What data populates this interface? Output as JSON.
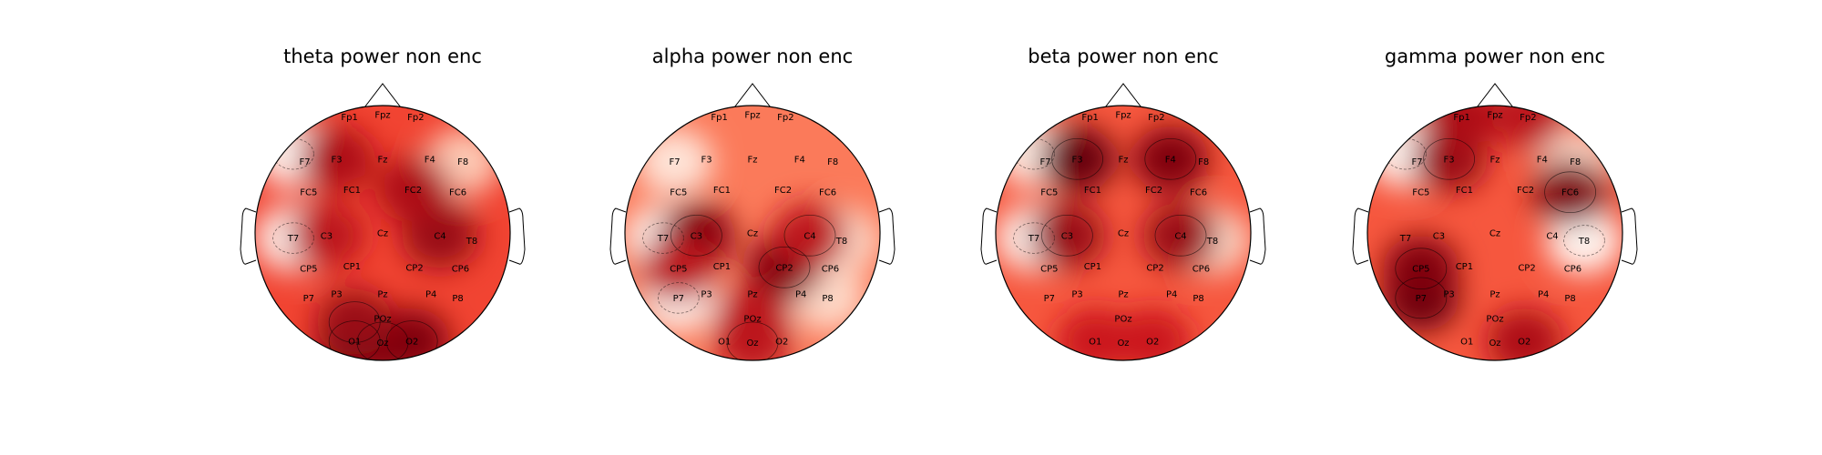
{
  "figure": {
    "background": "#ffffff",
    "colormap": "Reds",
    "head_outline_color": "#000000"
  },
  "chart_data": [
    {
      "type": "heatmap",
      "subtype": "eeg-topomap",
      "title": "theta power non enc",
      "hotspots": [
        {
          "electrode": "O1",
          "intensity": 1.0
        },
        {
          "electrode": "Oz",
          "intensity": 1.0
        },
        {
          "electrode": "O2",
          "intensity": 0.95
        },
        {
          "electrode": "PO3",
          "intensity": 0.9
        },
        {
          "electrode": "C4",
          "intensity": 0.9
        },
        {
          "electrode": "FC2",
          "intensity": 0.85
        },
        {
          "electrode": "F3",
          "intensity": 0.85
        },
        {
          "electrode": "C3",
          "intensity": 0.8
        }
      ],
      "coldspots": [
        {
          "electrode": "T7",
          "intensity": 0.0
        },
        {
          "electrode": "AF7",
          "intensity": 0.0
        },
        {
          "electrode": "F8",
          "intensity": 0.2
        }
      ],
      "background_intensity": 0.6
    },
    {
      "type": "heatmap",
      "subtype": "eeg-topomap",
      "title": "alpha power non enc",
      "hotspots": [
        {
          "electrode": "C3",
          "intensity": 0.95
        },
        {
          "electrode": "CP2",
          "intensity": 0.95
        },
        {
          "electrode": "C4",
          "intensity": 0.8
        },
        {
          "electrode": "Oz",
          "intensity": 0.8
        },
        {
          "electrode": "POz",
          "intensity": 0.8
        },
        {
          "electrode": "CP5",
          "intensity": 0.8
        }
      ],
      "coldspots": [
        {
          "electrode": "T7",
          "intensity": 0.0
        },
        {
          "electrode": "P7",
          "intensity": 0.0
        },
        {
          "electrode": "F7",
          "intensity": 0.1
        },
        {
          "electrode": "T8",
          "intensity": 0.15
        },
        {
          "electrode": "P8",
          "intensity": 0.15
        }
      ],
      "background_intensity": 0.45
    },
    {
      "type": "heatmap",
      "subtype": "eeg-topomap",
      "title": "beta power non enc",
      "hotspots": [
        {
          "electrode": "F3",
          "intensity": 1.0
        },
        {
          "electrode": "F4",
          "intensity": 0.95
        },
        {
          "electrode": "C3",
          "intensity": 0.9
        },
        {
          "electrode": "C4",
          "intensity": 0.9
        },
        {
          "electrode": "O1",
          "intensity": 0.75
        },
        {
          "electrode": "O2",
          "intensity": 0.75
        }
      ],
      "coldspots": [
        {
          "electrode": "T7",
          "intensity": 0.0
        },
        {
          "electrode": "AF7",
          "intensity": 0.05
        },
        {
          "electrode": "T8",
          "intensity": 0.15
        }
      ],
      "background_intensity": 0.55
    },
    {
      "type": "heatmap",
      "subtype": "eeg-topomap",
      "title": "gamma power non enc",
      "hotspots": [
        {
          "electrode": "P7",
          "intensity": 1.0
        },
        {
          "electrode": "CP5",
          "intensity": 0.95
        },
        {
          "electrode": "FC6",
          "intensity": 0.95
        },
        {
          "electrode": "F3",
          "intensity": 0.9
        },
        {
          "electrode": "Fp1",
          "intensity": 0.85
        },
        {
          "electrode": "O2",
          "intensity": 0.85
        },
        {
          "electrode": "Fp2",
          "intensity": 0.8
        }
      ],
      "coldspots": [
        {
          "electrode": "T8",
          "intensity": 0.0
        },
        {
          "electrode": "AF7",
          "intensity": 0.0
        },
        {
          "electrode": "F8",
          "intensity": 0.15
        }
      ],
      "background_intensity": 0.55
    }
  ],
  "electrode_labels": [
    "Fp1",
    "Fpz",
    "Fp2",
    "F7",
    "F3",
    "Fz",
    "F4",
    "F8",
    "FC5",
    "FC1",
    "FC2",
    "FC6",
    "T7",
    "C3",
    "Cz",
    "C4",
    "T8",
    "CP5",
    "CP1",
    "CP2",
    "CP6",
    "P7",
    "P3",
    "Pz",
    "P4",
    "P8",
    "POz",
    "O1",
    "Oz",
    "O2"
  ]
}
